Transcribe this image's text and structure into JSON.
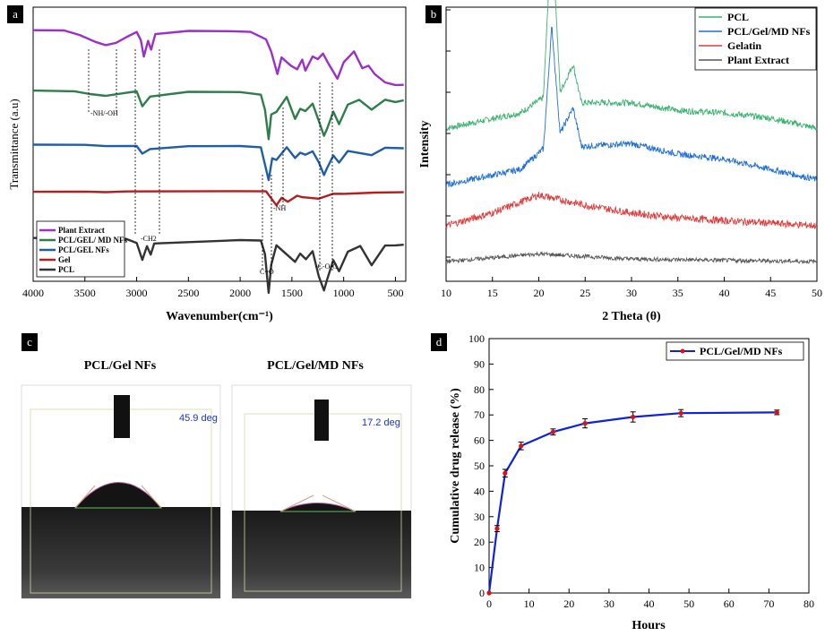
{
  "colors": {
    "plant_extract": "#9b30c9",
    "pcl_gel_md": "#2e7d4a",
    "pcl_gel": "#1e5ea8",
    "gel": "#b51e1e",
    "pcl": "#333333",
    "xrd_pcl": "#3cb371",
    "xrd_md": "#1f6fd6",
    "xrd_gelatin": "#e03c3c",
    "xrd_plant": "#555555",
    "release_line": "#1020e0",
    "release_marker": "#e01010",
    "panel_letter_bg": "#000000"
  },
  "chart_data": [
    {
      "panel": "a",
      "type": "line",
      "title": "",
      "xlabel": "Wavenumber(cm⁻¹)",
      "ylabel": "Transmittance (a.u)",
      "xlim": [
        4000,
        400
      ],
      "xticks": [
        "4000",
        "3500",
        "3000",
        "2500",
        "2000",
        "1500",
        "1000",
        "500"
      ],
      "xtick_values": [
        4000,
        3500,
        3000,
        2500,
        2000,
        1500,
        1000,
        500
      ],
      "legend": [
        "Plant Extract",
        "PCL/GEL/ MD NFs",
        "PCL/GEL NFs",
        "Gel",
        "PCL"
      ],
      "annotations": [
        "-NH/-OH",
        "-CH2",
        "C=O",
        "-NH",
        "-C-O-C"
      ],
      "series": [
        {
          "name": "Plant Extract",
          "offset": 0.92,
          "points": [
            [
              4000,
              0.98
            ],
            [
              3700,
              0.98
            ],
            [
              3550,
              0.9
            ],
            [
              3400,
              0.78
            ],
            [
              3300,
              0.72
            ],
            [
              3200,
              0.76
            ],
            [
              3100,
              0.86
            ],
            [
              3000,
              0.95
            ],
            [
              2960,
              0.8
            ],
            [
              2930,
              0.5
            ],
            [
              2890,
              0.78
            ],
            [
              2860,
              0.62
            ],
            [
              2820,
              0.9
            ],
            [
              2500,
              0.96
            ],
            [
              2100,
              0.96
            ],
            [
              1900,
              0.95
            ],
            [
              1750,
              0.82
            ],
            [
              1700,
              0.6
            ],
            [
              1640,
              0.2
            ],
            [
              1600,
              0.5
            ],
            [
              1510,
              0.35
            ],
            [
              1450,
              0.28
            ],
            [
              1400,
              0.45
            ],
            [
              1370,
              0.25
            ],
            [
              1300,
              0.5
            ],
            [
              1250,
              0.45
            ],
            [
              1200,
              0.55
            ],
            [
              1150,
              0.38
            ],
            [
              1060,
              0.1
            ],
            [
              1000,
              0.4
            ],
            [
              900,
              0.6
            ],
            [
              820,
              0.3
            ],
            [
              760,
              0.35
            ],
            [
              700,
              0.2
            ],
            [
              600,
              0.05
            ],
            [
              500,
              0.0
            ],
            [
              420,
              0.0
            ]
          ]
        },
        {
          "name": "PCL/GEL/ MD NFs",
          "offset": 0.7,
          "points": [
            [
              4000,
              0.98
            ],
            [
              3600,
              0.96
            ],
            [
              3450,
              0.9
            ],
            [
              3300,
              0.86
            ],
            [
              3100,
              0.92
            ],
            [
              3000,
              0.95
            ],
            [
              2945,
              0.65
            ],
            [
              2870,
              0.85
            ],
            [
              2500,
              0.95
            ],
            [
              2000,
              0.95
            ],
            [
              1800,
              0.9
            ],
            [
              1760,
              0.6
            ],
            [
              1725,
              0.0
            ],
            [
              1700,
              0.5
            ],
            [
              1650,
              0.55
            ],
            [
              1550,
              0.85
            ],
            [
              1470,
              0.4
            ],
            [
              1420,
              0.6
            ],
            [
              1370,
              0.55
            ],
            [
              1300,
              0.7
            ],
            [
              1240,
              0.35
            ],
            [
              1190,
              0.05
            ],
            [
              1160,
              0.2
            ],
            [
              1100,
              0.55
            ],
            [
              1045,
              0.3
            ],
            [
              960,
              0.7
            ],
            [
              850,
              0.8
            ],
            [
              730,
              0.6
            ],
            [
              600,
              0.8
            ],
            [
              500,
              0.75
            ],
            [
              420,
              0.78
            ]
          ]
        },
        {
          "name": "PCL/GEL NFs",
          "offset": 0.5,
          "points": [
            [
              4000,
              0.98
            ],
            [
              3500,
              0.98
            ],
            [
              3300,
              0.95
            ],
            [
              3000,
              0.96
            ],
            [
              2945,
              0.75
            ],
            [
              2870,
              0.88
            ],
            [
              2500,
              0.96
            ],
            [
              2000,
              0.96
            ],
            [
              1800,
              0.92
            ],
            [
              1725,
              0.0
            ],
            [
              1690,
              0.6
            ],
            [
              1650,
              0.55
            ],
            [
              1550,
              0.9
            ],
            [
              1470,
              0.6
            ],
            [
              1420,
              0.75
            ],
            [
              1370,
              0.7
            ],
            [
              1300,
              0.8
            ],
            [
              1240,
              0.5
            ],
            [
              1190,
              0.15
            ],
            [
              1160,
              0.35
            ],
            [
              1100,
              0.7
            ],
            [
              1045,
              0.5
            ],
            [
              960,
              0.82
            ],
            [
              730,
              0.7
            ],
            [
              600,
              0.9
            ],
            [
              420,
              0.88
            ]
          ]
        },
        {
          "name": "Gel",
          "offset": 0.33,
          "points": [
            [
              4000,
              0.98
            ],
            [
              3500,
              0.98
            ],
            [
              3300,
              0.95
            ],
            [
              3100,
              0.97
            ],
            [
              2000,
              0.97
            ],
            [
              1750,
              0.96
            ],
            [
              1650,
              0.4
            ],
            [
              1600,
              0.7
            ],
            [
              1540,
              0.55
            ],
            [
              1450,
              0.8
            ],
            [
              1400,
              0.75
            ],
            [
              1240,
              0.7
            ],
            [
              1100,
              0.9
            ],
            [
              1000,
              0.9
            ],
            [
              700,
              0.95
            ],
            [
              420,
              0.96
            ]
          ]
        },
        {
          "name": "PCL",
          "offset": 0.16,
          "points": [
            [
              4000,
              0.98
            ],
            [
              3500,
              0.98
            ],
            [
              3100,
              0.97
            ],
            [
              3000,
              0.9
            ],
            [
              2945,
              0.6
            ],
            [
              2900,
              0.85
            ],
            [
              2865,
              0.7
            ],
            [
              2830,
              0.9
            ],
            [
              2000,
              0.96
            ],
            [
              1800,
              0.95
            ],
            [
              1760,
              0.7
            ],
            [
              1725,
              0.0
            ],
            [
              1700,
              0.5
            ],
            [
              1650,
              0.85
            ],
            [
              1470,
              0.55
            ],
            [
              1420,
              0.7
            ],
            [
              1365,
              0.6
            ],
            [
              1300,
              0.75
            ],
            [
              1240,
              0.3
            ],
            [
              1190,
              0.05
            ],
            [
              1160,
              0.25
            ],
            [
              1100,
              0.6
            ],
            [
              1045,
              0.4
            ],
            [
              960,
              0.75
            ],
            [
              840,
              0.85
            ],
            [
              730,
              0.5
            ],
            [
              600,
              0.85
            ],
            [
              500,
              0.85
            ],
            [
              420,
              0.86
            ]
          ]
        }
      ]
    },
    {
      "panel": "b",
      "type": "line",
      "title": "",
      "xlabel": "2 Theta (θ)",
      "ylabel": "Intensity",
      "xlim": [
        10,
        50
      ],
      "xticks": [
        "10",
        "15",
        "20",
        "25",
        "30",
        "35",
        "40",
        "45",
        "50"
      ],
      "xtick_values": [
        10,
        15,
        20,
        25,
        30,
        35,
        40,
        45,
        50
      ],
      "legend": [
        "PCL",
        "PCL/Gel/MD NFs",
        "Gelatin",
        "Plant Extract"
      ],
      "series": [
        {
          "name": "PCL",
          "base": 0.52,
          "noise": 0.012,
          "features": [
            [
              10,
              0.0
            ],
            [
              18,
              0.06
            ],
            [
              20.5,
              0.12
            ],
            [
              21.4,
              0.8
            ],
            [
              22.3,
              0.14
            ],
            [
              23.7,
              0.25
            ],
            [
              24.6,
              0.1
            ],
            [
              30,
              0.1
            ],
            [
              35,
              0.07
            ],
            [
              40,
              0.06
            ],
            [
              45,
              0.04
            ],
            [
              50,
              0.0
            ]
          ]
        },
        {
          "name": "PCL/Gel/MD NFs",
          "base": 0.3,
          "noise": 0.012,
          "features": [
            [
              10,
              0.0
            ],
            [
              18,
              0.06
            ],
            [
              20.5,
              0.14
            ],
            [
              21.4,
              0.62
            ],
            [
              22.3,
              0.2
            ],
            [
              23.7,
              0.3
            ],
            [
              24.6,
              0.15
            ],
            [
              30,
              0.16
            ],
            [
              35,
              0.12
            ],
            [
              40,
              0.1
            ],
            [
              45,
              0.06
            ],
            [
              50,
              0.02
            ]
          ]
        },
        {
          "name": "Gelatin",
          "base": 0.14,
          "noise": 0.014,
          "features": [
            [
              10,
              0.0
            ],
            [
              15,
              0.05
            ],
            [
              20,
              0.12
            ],
            [
              25,
              0.08
            ],
            [
              30,
              0.05
            ],
            [
              35,
              0.03
            ],
            [
              40,
              0.02
            ],
            [
              50,
              0.0
            ]
          ]
        },
        {
          "name": "Plant Extract",
          "base": 0.0,
          "noise": 0.008,
          "features": [
            [
              10,
              0.0
            ],
            [
              20,
              0.03
            ],
            [
              30,
              0.01
            ],
            [
              50,
              0.0
            ]
          ]
        }
      ]
    },
    {
      "panel": "d",
      "type": "line",
      "title": "",
      "xlabel": "Hours",
      "ylabel": "Cumulative drug release (%)",
      "xlim": [
        0,
        80
      ],
      "ylim": [
        0,
        100
      ],
      "xticks": [
        "0",
        "10",
        "20",
        "30",
        "40",
        "50",
        "60",
        "70",
        "80"
      ],
      "xtick_values": [
        0,
        10,
        20,
        30,
        40,
        50,
        60,
        70,
        80
      ],
      "yticks": [
        "0",
        "10",
        "20",
        "30",
        "40",
        "50",
        "60",
        "70",
        "80",
        "90",
        "100"
      ],
      "ytick_values": [
        0,
        10,
        20,
        30,
        40,
        50,
        60,
        70,
        80,
        90,
        100
      ],
      "legend": [
        "PCL/Gel/MD NFs"
      ],
      "series": [
        {
          "name": "PCL/Gel/MD NFs",
          "x": [
            0,
            2,
            4,
            8,
            16,
            24,
            36,
            48,
            72
          ],
          "y": [
            0,
            25.3,
            47.1,
            57.8,
            63.3,
            66.7,
            69.2,
            70.7,
            71.0
          ],
          "err": [
            0,
            1.2,
            1.5,
            1.5,
            1.2,
            1.8,
            2.0,
            1.4,
            0.9
          ]
        }
      ]
    }
  ],
  "panel_c": {
    "letter": "c",
    "left": {
      "title": "PCL/Gel NFs",
      "angle": "45.9 deg"
    },
    "right": {
      "title": "PCL/Gel/MD NFs",
      "angle": "17.2 deg"
    }
  },
  "panel_letters": {
    "a": "a",
    "b": "b",
    "c": "c",
    "d": "d"
  }
}
